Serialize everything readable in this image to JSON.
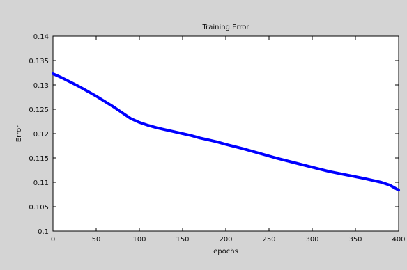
{
  "chart_data": {
    "type": "line",
    "title": "Training Error",
    "xlabel": "epochs",
    "ylabel": "Error",
    "xlim": [
      0,
      400
    ],
    "ylim": [
      0.1,
      0.14
    ],
    "x_ticks": [
      0,
      50,
      100,
      150,
      200,
      250,
      300,
      350,
      400
    ],
    "x_tick_labels": [
      "0",
      "50",
      "100",
      "150",
      "200",
      "250",
      "300",
      "350",
      "400"
    ],
    "y_ticks": [
      0.1,
      0.105,
      0.11,
      0.115,
      0.12,
      0.125,
      0.13,
      0.135,
      0.14
    ],
    "y_tick_labels": [
      "0.1",
      "0.105",
      "0.11",
      "0.115",
      "0.12",
      "0.125",
      "0.13",
      "0.135",
      "0.14"
    ],
    "grid": false,
    "series": [
      {
        "color": "#0000ff",
        "x": [
          0,
          10,
          20,
          30,
          40,
          50,
          60,
          70,
          80,
          90,
          100,
          110,
          120,
          130,
          140,
          150,
          160,
          170,
          180,
          190,
          200,
          220,
          240,
          260,
          280,
          300,
          320,
          340,
          360,
          380,
          390,
          400
        ],
        "y": [
          0.1323,
          0.1315,
          0.1306,
          0.1297,
          0.1287,
          0.1277,
          0.1266,
          0.1255,
          0.1243,
          0.1231,
          0.1223,
          0.1217,
          0.1212,
          0.1208,
          0.1204,
          0.12,
          0.1196,
          0.1191,
          0.1187,
          0.1183,
          0.1178,
          0.1169,
          0.1159,
          0.1149,
          0.114,
          0.1131,
          0.1122,
          0.1115,
          0.1108,
          0.11,
          0.1094,
          0.1084
        ]
      }
    ]
  }
}
